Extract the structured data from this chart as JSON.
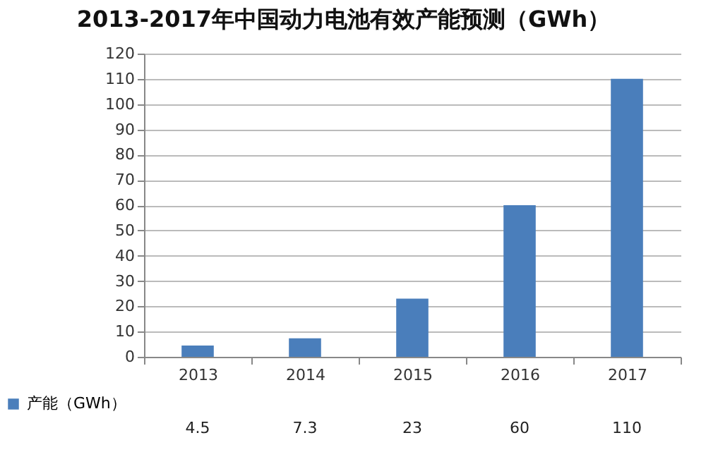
{
  "chart_data": {
    "type": "bar",
    "title": "2013-2017年中国动力电池有效产能预测（GWh）",
    "categories": [
      "2013",
      "2014",
      "2015",
      "2016",
      "2017"
    ],
    "series": [
      {
        "name": "产能（GWh）",
        "color": "#4a7ebb",
        "values": [
          4.5,
          7.3,
          23,
          60,
          110
        ]
      }
    ],
    "ylim": [
      0,
      120
    ],
    "yticks": [
      0,
      10,
      20,
      30,
      40,
      50,
      60,
      70,
      80,
      90,
      100,
      110,
      120
    ],
    "grid": "y",
    "data_labels": true,
    "legend": "bottom"
  }
}
